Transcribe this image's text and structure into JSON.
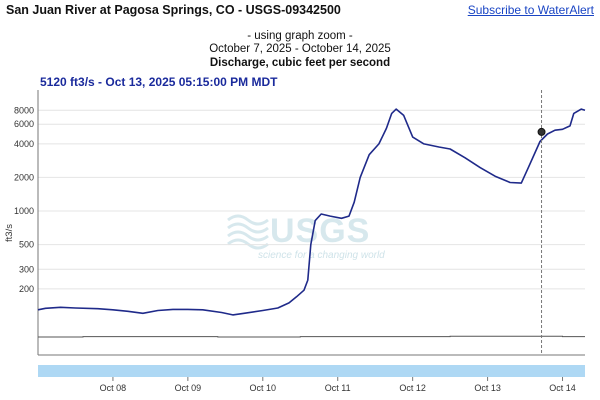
{
  "header": {
    "site_title": "San Juan River at Pagosa Springs, CO - USGS-09342500",
    "subscribe_label": "Subscribe to WaterAlert"
  },
  "chart_header": {
    "zoom_note": "- using graph zoom -",
    "date_range": "October 7, 2025 - October 14, 2025",
    "title": "Discharge, cubic feet per second"
  },
  "tooltip": {
    "text": "5120 ft3/s - Oct 13, 2025 05:15:00 PM MDT"
  },
  "watermark": {
    "logo_text": "USGS",
    "tagline": "science for a changing world"
  },
  "colors": {
    "series_line": "#1f2a8a",
    "secondary_line": "#555555",
    "range_bar": "#aed8f4",
    "crosshair": "#777777",
    "axis": "#777777"
  },
  "chart_data": {
    "type": "line",
    "title": "Discharge, cubic feet per second",
    "ylabel": "ft3/s",
    "xlabel": "",
    "yscale": "log",
    "ylim": [
      100,
      10000
    ],
    "y_ticks": [
      200,
      300,
      500,
      1000,
      2000,
      4000,
      6000,
      8000
    ],
    "x_tick_labels": [
      "Oct 08",
      "Oct 09",
      "Oct 10",
      "Oct 11",
      "Oct 12",
      "Oct 13",
      "Oct 14"
    ],
    "x_range_days": [
      7.0,
      14.3
    ],
    "grid": "horizontal",
    "series": [
      {
        "values": [
          [
            7.0,
            130
          ],
          [
            7.1,
            134
          ],
          [
            7.3,
            137
          ],
          [
            7.5,
            135
          ],
          [
            7.8,
            133
          ],
          [
            8.0,
            130
          ],
          [
            8.2,
            126
          ],
          [
            8.4,
            121
          ],
          [
            8.6,
            128
          ],
          [
            8.8,
            131
          ],
          [
            9.0,
            131
          ],
          [
            9.2,
            130
          ],
          [
            9.45,
            123
          ],
          [
            9.6,
            117
          ],
          [
            9.75,
            121
          ],
          [
            10.0,
            128
          ],
          [
            10.2,
            135
          ],
          [
            10.35,
            150
          ],
          [
            10.45,
            170
          ],
          [
            10.55,
            195
          ],
          [
            10.6,
            240
          ],
          [
            10.64,
            500
          ],
          [
            10.7,
            820
          ],
          [
            10.78,
            940
          ],
          [
            10.9,
            900
          ],
          [
            11.05,
            860
          ],
          [
            11.15,
            900
          ],
          [
            11.22,
            1200
          ],
          [
            11.3,
            2000
          ],
          [
            11.42,
            3200
          ],
          [
            11.55,
            4000
          ],
          [
            11.65,
            5500
          ],
          [
            11.72,
            7500
          ],
          [
            11.78,
            8200
          ],
          [
            11.88,
            7200
          ],
          [
            12.0,
            4600
          ],
          [
            12.15,
            4000
          ],
          [
            12.35,
            3750
          ],
          [
            12.5,
            3600
          ],
          [
            12.7,
            3000
          ],
          [
            12.9,
            2450
          ],
          [
            13.1,
            2050
          ],
          [
            13.3,
            1800
          ],
          [
            13.45,
            1780
          ],
          [
            13.55,
            2500
          ],
          [
            13.7,
            4200
          ],
          [
            13.8,
            4900
          ],
          [
            13.9,
            5300
          ],
          [
            14.0,
            5400
          ],
          [
            14.1,
            5800
          ],
          [
            14.15,
            7500
          ],
          [
            14.25,
            8200
          ],
          [
            14.3,
            8000
          ]
        ]
      }
    ],
    "secondary_line": [
      [
        7.0,
        112
      ],
      [
        7.6,
        112
      ],
      [
        7.6,
        113
      ],
      [
        9.4,
        113
      ],
      [
        9.4,
        112
      ],
      [
        10.5,
        112
      ],
      [
        10.5,
        113
      ],
      [
        12.5,
        113
      ],
      [
        12.5,
        114
      ],
      [
        14.0,
        114
      ],
      [
        14.0,
        113
      ],
      [
        14.3,
        113
      ]
    ],
    "crosshair": {
      "x": 13.72,
      "y": 5120
    }
  }
}
